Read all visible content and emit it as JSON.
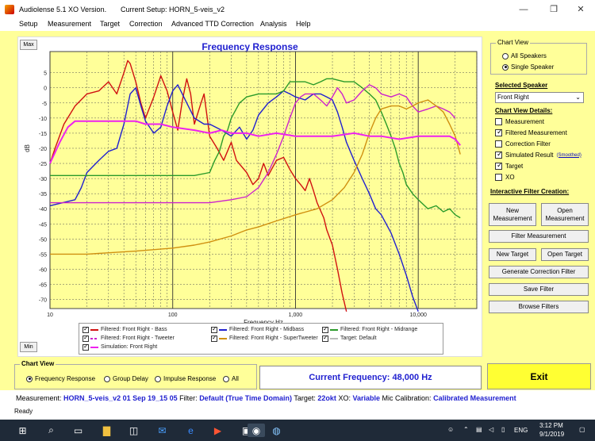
{
  "window": {
    "title": "Audiolense 5.1 XO Version.",
    "current_setup": "Current Setup: HORN_5-veis_v2",
    "minimize": "—",
    "restore": "❐",
    "close": "✕"
  },
  "menu": [
    "Setup",
    "Measurement",
    "Target",
    "Correction",
    "Advanced TTD Correction",
    "Analysis",
    "Help"
  ],
  "graph": {
    "title": "Frequency Response",
    "max_label": "Max",
    "min_label": "Min"
  },
  "chart_data": {
    "type": "line",
    "title": "Frequency Response",
    "xlabel": "Frequency Hz",
    "ylabel": "dB",
    "xscale": "log",
    "xlim": [
      10,
      30000
    ],
    "ylim": [
      -73,
      12
    ],
    "grid": true,
    "x_ticks": [
      {
        "v": 10,
        "label": "10"
      },
      {
        "v": 100,
        "label": "100"
      },
      {
        "v": 1000,
        "label": "1,000"
      },
      {
        "v": 10000,
        "label": "10,000"
      }
    ],
    "y_ticks": [
      5,
      0,
      -5,
      -10,
      -15,
      -20,
      -25,
      -30,
      -35,
      -40,
      -45,
      -50,
      -55,
      -60,
      -65,
      -70
    ],
    "y_tick_labels": [
      "5",
      "0",
      "-5",
      "-10",
      "-15",
      "-20",
      "-25",
      "-30",
      "-35",
      "-40",
      "-45",
      "-50",
      "-55",
      "-60",
      "-65",
      "-70"
    ],
    "series": [
      {
        "name": "Filtered: Front Right - Bass",
        "color": "#d01010",
        "points": [
          [
            10,
            -25
          ],
          [
            11,
            -20
          ],
          [
            13,
            -12
          ],
          [
            16,
            -6
          ],
          [
            20,
            -2
          ],
          [
            25,
            -1
          ],
          [
            30,
            2
          ],
          [
            35,
            -2
          ],
          [
            40,
            5
          ],
          [
            43,
            9
          ],
          [
            45,
            8
          ],
          [
            50,
            2
          ],
          [
            55,
            -5
          ],
          [
            60,
            -10
          ],
          [
            70,
            -3
          ],
          [
            80,
            4
          ],
          [
            90,
            -1
          ],
          [
            100,
            -8
          ],
          [
            110,
            -14
          ],
          [
            120,
            -4
          ],
          [
            130,
            3
          ],
          [
            140,
            -2
          ],
          [
            150,
            -12
          ],
          [
            170,
            -5
          ],
          [
            180,
            -2
          ],
          [
            200,
            -16
          ],
          [
            230,
            -20
          ],
          [
            260,
            -24
          ],
          [
            300,
            -18
          ],
          [
            330,
            -24
          ],
          [
            400,
            -28
          ],
          [
            450,
            -32
          ],
          [
            500,
            -30
          ],
          [
            550,
            -25
          ],
          [
            600,
            -29
          ],
          [
            700,
            -24
          ],
          [
            800,
            -23
          ],
          [
            900,
            -27
          ],
          [
            1000,
            -30
          ],
          [
            1100,
            -32
          ],
          [
            1200,
            -34
          ],
          [
            1300,
            -30
          ],
          [
            1400,
            -34
          ],
          [
            1500,
            -38
          ],
          [
            1700,
            -43
          ],
          [
            1800,
            -47
          ],
          [
            2000,
            -52
          ],
          [
            2200,
            -60
          ],
          [
            2400,
            -68
          ],
          [
            2600,
            -74
          ]
        ]
      },
      {
        "name": "Filtered: Front Right - Midbass",
        "color": "#2020cf",
        "points": [
          [
            10,
            -39
          ],
          [
            16,
            -37
          ],
          [
            18,
            -33
          ],
          [
            20,
            -28
          ],
          [
            25,
            -24
          ],
          [
            30,
            -21
          ],
          [
            35,
            -20
          ],
          [
            40,
            -12
          ],
          [
            45,
            -2
          ],
          [
            50,
            0
          ],
          [
            55,
            -6
          ],
          [
            60,
            -11
          ],
          [
            70,
            -15
          ],
          [
            80,
            -13
          ],
          [
            90,
            -6
          ],
          [
            100,
            -1
          ],
          [
            110,
            1
          ],
          [
            130,
            -5
          ],
          [
            150,
            -10
          ],
          [
            180,
            -12
          ],
          [
            200,
            -12
          ],
          [
            250,
            -14
          ],
          [
            300,
            -16
          ],
          [
            350,
            -13
          ],
          [
            400,
            -17
          ],
          [
            450,
            -14
          ],
          [
            500,
            -9
          ],
          [
            600,
            -5
          ],
          [
            700,
            -3
          ],
          [
            800,
            -1
          ],
          [
            900,
            -2
          ],
          [
            1000,
            -3
          ],
          [
            1200,
            -4
          ],
          [
            1400,
            -2
          ],
          [
            1600,
            -2
          ],
          [
            1800,
            -3
          ],
          [
            2000,
            -4
          ],
          [
            2200,
            -8
          ],
          [
            2400,
            -13
          ],
          [
            2600,
            -18
          ],
          [
            3000,
            -24
          ],
          [
            3500,
            -30
          ],
          [
            4000,
            -35
          ],
          [
            4500,
            -40
          ],
          [
            5000,
            -42
          ],
          [
            6000,
            -48
          ],
          [
            7000,
            -55
          ],
          [
            8000,
            -62
          ],
          [
            9000,
            -69
          ],
          [
            10000,
            -74
          ]
        ]
      },
      {
        "name": "Filtered: Front Right - Midrange",
        "color": "#2a9a2a",
        "points": [
          [
            10,
            -29
          ],
          [
            50,
            -29
          ],
          [
            100,
            -29
          ],
          [
            150,
            -29
          ],
          [
            200,
            -28
          ],
          [
            220,
            -24
          ],
          [
            240,
            -21
          ],
          [
            260,
            -16
          ],
          [
            280,
            -14
          ],
          [
            300,
            -10
          ],
          [
            350,
            -5
          ],
          [
            400,
            -3
          ],
          [
            500,
            -2
          ],
          [
            600,
            -2
          ],
          [
            700,
            -2
          ],
          [
            800,
            -1
          ],
          [
            900,
            2
          ],
          [
            1000,
            2
          ],
          [
            1200,
            2
          ],
          [
            1400,
            1
          ],
          [
            1600,
            2
          ],
          [
            1800,
            3
          ],
          [
            2000,
            3
          ],
          [
            2500,
            2
          ],
          [
            3000,
            2
          ],
          [
            3500,
            0
          ],
          [
            4000,
            -2
          ],
          [
            4500,
            -4
          ],
          [
            5000,
            -8
          ],
          [
            5500,
            -12
          ],
          [
            6000,
            -16
          ],
          [
            6500,
            -20
          ],
          [
            7000,
            -25
          ],
          [
            7500,
            -28
          ],
          [
            8000,
            -32
          ],
          [
            9000,
            -35
          ],
          [
            10000,
            -37
          ],
          [
            12000,
            -40
          ],
          [
            14000,
            -39
          ],
          [
            16000,
            -41
          ],
          [
            18000,
            -40
          ],
          [
            20000,
            -42
          ],
          [
            22000,
            -43
          ]
        ]
      },
      {
        "name": "Filtered: Front Right - Tweeter",
        "color": "#cc22cc",
        "points": [
          [
            10,
            -38
          ],
          [
            100,
            -38
          ],
          [
            200,
            -38
          ],
          [
            300,
            -37
          ],
          [
            400,
            -36
          ],
          [
            500,
            -33
          ],
          [
            600,
            -28
          ],
          [
            700,
            -22
          ],
          [
            800,
            -16
          ],
          [
            900,
            -10
          ],
          [
            1000,
            -5
          ],
          [
            1100,
            -3
          ],
          [
            1200,
            -2
          ],
          [
            1400,
            -2
          ],
          [
            1600,
            -4
          ],
          [
            1800,
            -6
          ],
          [
            2000,
            -3
          ],
          [
            2200,
            0
          ],
          [
            2400,
            -2
          ],
          [
            2600,
            -5
          ],
          [
            3000,
            -4
          ],
          [
            3500,
            -1
          ],
          [
            4000,
            1
          ],
          [
            4500,
            0
          ],
          [
            5000,
            -2
          ],
          [
            6000,
            -3
          ],
          [
            7000,
            -2
          ],
          [
            8000,
            -3
          ],
          [
            9000,
            -6
          ],
          [
            10000,
            -8
          ],
          [
            12000,
            -7
          ],
          [
            14000,
            -6
          ],
          [
            16000,
            -7
          ],
          [
            18000,
            -8
          ],
          [
            20000,
            -10
          ]
        ]
      },
      {
        "name": "Filtered: Front Right - SuperTweeter",
        "color": "#d09010",
        "points": [
          [
            10,
            -55
          ],
          [
            20,
            -55
          ],
          [
            50,
            -54
          ],
          [
            100,
            -53
          ],
          [
            150,
            -52
          ],
          [
            200,
            -51
          ],
          [
            300,
            -49
          ],
          [
            400,
            -47
          ],
          [
            500,
            -46
          ],
          [
            700,
            -44
          ],
          [
            1000,
            -42
          ],
          [
            1500,
            -40
          ],
          [
            2000,
            -37
          ],
          [
            2500,
            -33
          ],
          [
            3000,
            -28
          ],
          [
            3500,
            -22
          ],
          [
            4000,
            -15
          ],
          [
            4500,
            -10
          ],
          [
            5000,
            -7
          ],
          [
            6000,
            -6
          ],
          [
            7000,
            -6
          ],
          [
            8000,
            -7
          ],
          [
            9000,
            -6
          ],
          [
            10000,
            -5
          ],
          [
            12000,
            -4
          ],
          [
            14000,
            -6
          ],
          [
            16000,
            -8
          ],
          [
            18000,
            -12
          ],
          [
            20000,
            -16
          ],
          [
            22000,
            -22
          ]
        ]
      },
      {
        "name": "Simulation: Front Right",
        "color": "#ee22ee",
        "points": [
          [
            10,
            -25
          ],
          [
            12,
            -18
          ],
          [
            14,
            -13
          ],
          [
            16,
            -11
          ],
          [
            20,
            -11
          ],
          [
            30,
            -11
          ],
          [
            40,
            -11
          ],
          [
            50,
            -11
          ],
          [
            60,
            -12
          ],
          [
            80,
            -12
          ],
          [
            100,
            -13
          ],
          [
            150,
            -14
          ],
          [
            200,
            -15
          ],
          [
            250,
            -14
          ],
          [
            300,
            -15
          ],
          [
            400,
            -15
          ],
          [
            500,
            -16
          ],
          [
            700,
            -15
          ],
          [
            1000,
            -16
          ],
          [
            1500,
            -16
          ],
          [
            2000,
            -16
          ],
          [
            3000,
            -15
          ],
          [
            4000,
            -16
          ],
          [
            5000,
            -16
          ],
          [
            7000,
            -17
          ],
          [
            10000,
            -16
          ],
          [
            14000,
            -16
          ],
          [
            18000,
            -16
          ],
          [
            20000,
            -17
          ],
          [
            22000,
            -19
          ]
        ]
      },
      {
        "name": "Target: Default",
        "color": "#bbbbbb",
        "points": []
      }
    ]
  },
  "legend": [
    {
      "label": "Filtered: Front Right - Bass",
      "color": "#d01010",
      "style": "line"
    },
    {
      "label": "Filtered: Front Right - Midbass",
      "color": "#2020cf",
      "style": "line"
    },
    {
      "label": "Filtered: Front Right - Midrange",
      "color": "#2a9a2a",
      "style": "line"
    },
    {
      "label": "Filtered: Front Right - Tweeter",
      "color": "#cc22cc",
      "style": "dash"
    },
    {
      "label": "Filtered: Front Right - SuperTweeter",
      "color": "#d09010",
      "style": "line"
    },
    {
      "label": "Target: Default",
      "color": "#bbbbbb",
      "style": "line"
    },
    {
      "label": "Simulation: Front Right",
      "color": "#ee22ee",
      "style": "line"
    }
  ],
  "side": {
    "chart_view_title": "Chart View",
    "all_speakers": "All Speakers",
    "single_speaker": "Single Speaker",
    "selected_speaker_label": "Selected Speaker",
    "selected_speaker": "Front Right",
    "details_label": "Chart View Details:",
    "details": [
      {
        "label": "Measurement",
        "checked": false
      },
      {
        "label": "Filtered Measurement",
        "checked": true
      },
      {
        "label": "Correction Filter",
        "checked": false
      },
      {
        "label": "Simulated Result",
        "checked": true
      },
      {
        "label": "Target",
        "checked": true
      },
      {
        "label": "XO",
        "checked": false
      }
    ],
    "smoothed_link": "(Smoothed)",
    "filter_creation_label": "Interactive Filter Creation:",
    "new_measurement": "New Measurement",
    "open_measurement": "Open Measurement",
    "filter_measurement": "Filter Measurement",
    "new_target": "New Target",
    "open_target": "Open Target",
    "generate_correction": "Generate Correction Filter",
    "save_filter": "Save Filter",
    "browse_filters": "Browse Filters"
  },
  "bottom": {
    "chart_view_title": "Chart View",
    "options": [
      "Frequency Response",
      "Group Delay",
      "Impulse Response",
      "All"
    ],
    "selected": 0,
    "current_frequency": "Current Frequency: 48,000 Hz",
    "exit": "Exit"
  },
  "status": {
    "measurement_label": "Measurement:",
    "measurement": "HORN_5-veis_v2 01 Sep 19_15 05",
    "filter_label": "Filter:",
    "filter": "Default (True Time Domain)",
    "target_label": "Target:",
    "target": "22okt",
    "xo_label": "XO:",
    "xo": "Variable",
    "mic_label": "Mic Calibration:",
    "mic": "Calibrated Measurement",
    "ready": "Ready"
  },
  "taskbar": {
    "lang": "ENG",
    "time": "3:12 PM",
    "date": "9/1/2019"
  }
}
